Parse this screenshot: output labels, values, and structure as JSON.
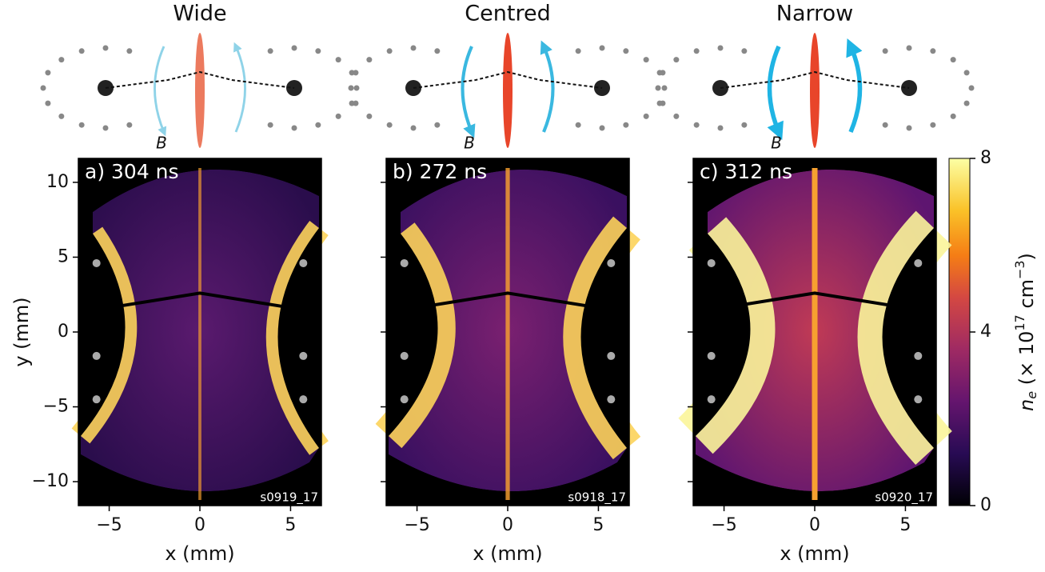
{
  "chart_data": [
    {
      "type": "heatmap",
      "title": "Wide",
      "panel_label": "a) 304 ns",
      "shot": "s0919_17",
      "field_label": "B",
      "color": "#8fd3e8",
      "xlabel": "x (mm)",
      "ylabel": "y (mm)",
      "xlim": [
        -6.7,
        6.7
      ],
      "ylim": [
        -11.6,
        11.6
      ],
      "xticks": [
        {
          "value": -5,
          "label": "−5"
        },
        0,
        5
      ],
      "yticks": [
        {
          "value": -10,
          "label": "−10"
        },
        {
          "value": -5,
          "label": "−5"
        },
        0,
        5,
        10
      ]
    },
    {
      "type": "heatmap",
      "title": "Centred",
      "panel_label": "b) 272 ns",
      "shot": "s0918_17",
      "field_label": "B",
      "color": "#3ab8e0",
      "xlabel": "x (mm)",
      "xlim": [
        -6.7,
        6.7
      ],
      "ylim": [
        -11.6,
        11.6
      ],
      "xticks": [
        {
          "value": -5,
          "label": "−5"
        },
        0,
        5
      ]
    },
    {
      "type": "heatmap",
      "title": "Narrow",
      "panel_label": "c) 312 ns",
      "shot": "s0920_17",
      "field_label": "B",
      "color": "#1fb4e4",
      "xlabel": "x (mm)",
      "xlim": [
        -6.7,
        6.7
      ],
      "ylim": [
        -11.6,
        11.6
      ],
      "xticks": [
        {
          "value": -5,
          "label": "−5"
        },
        0,
        5
      ]
    }
  ],
  "colorbar": {
    "lim": [
      0,
      8
    ],
    "ticks": [
      0,
      4,
      8
    ],
    "label": {
      "symbol": "n",
      "subscript": "e",
      "text": " (× 10",
      "exponent": "17",
      "unit": " cm",
      "unit_exponent": "−3",
      "close": ")"
    }
  }
}
